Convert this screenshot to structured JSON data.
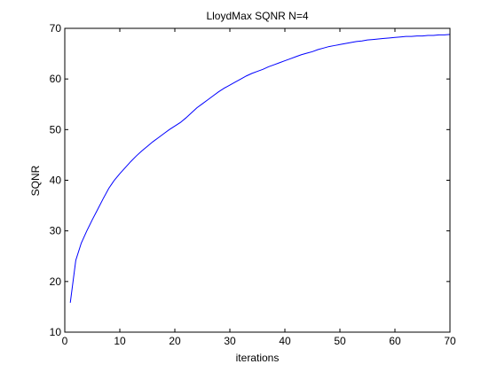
{
  "chart_data": {
    "type": "line",
    "title": "LloydMax SQNR N=4",
    "xlabel": "iterations",
    "ylabel": "SQNR",
    "xlim": [
      0,
      70
    ],
    "ylim": [
      10,
      70
    ],
    "xticks": [
      0,
      10,
      20,
      30,
      40,
      50,
      60,
      70
    ],
    "yticks": [
      10,
      20,
      30,
      40,
      50,
      60,
      70
    ],
    "grid": false,
    "series": [
      {
        "color": "#0000ff",
        "x": [
          1,
          2,
          3,
          4,
          5,
          6,
          7,
          8,
          9,
          10,
          11,
          12,
          13,
          14,
          15,
          16,
          17,
          18,
          19,
          20,
          21,
          22,
          23,
          24,
          25,
          26,
          27,
          28,
          29,
          30,
          31,
          32,
          33,
          34,
          35,
          36,
          37,
          38,
          39,
          40,
          41,
          42,
          43,
          44,
          45,
          46,
          47,
          48,
          49,
          50,
          51,
          52,
          53,
          54,
          55,
          56,
          57,
          58,
          59,
          60,
          61,
          62,
          63,
          64,
          65,
          66,
          67,
          68,
          69,
          70
        ],
        "y": [
          15.8,
          24.2,
          27.6,
          30.0,
          32.2,
          34.3,
          36.4,
          38.4,
          40.0,
          41.3,
          42.5,
          43.7,
          44.8,
          45.8,
          46.7,
          47.6,
          48.4,
          49.2,
          50.0,
          50.7,
          51.4,
          52.3,
          53.3,
          54.3,
          55.1,
          55.9,
          56.7,
          57.5,
          58.2,
          58.8,
          59.4,
          60.0,
          60.6,
          61.1,
          61.5,
          61.9,
          62.4,
          62.8,
          63.2,
          63.6,
          64.0,
          64.4,
          64.8,
          65.1,
          65.4,
          65.8,
          66.1,
          66.4,
          66.6,
          66.8,
          67.0,
          67.2,
          67.4,
          67.5,
          67.7,
          67.8,
          67.9,
          68.0,
          68.1,
          68.2,
          68.3,
          68.4,
          68.4,
          68.5,
          68.5,
          68.6,
          68.6,
          68.7,
          68.7,
          68.8
        ]
      }
    ]
  }
}
